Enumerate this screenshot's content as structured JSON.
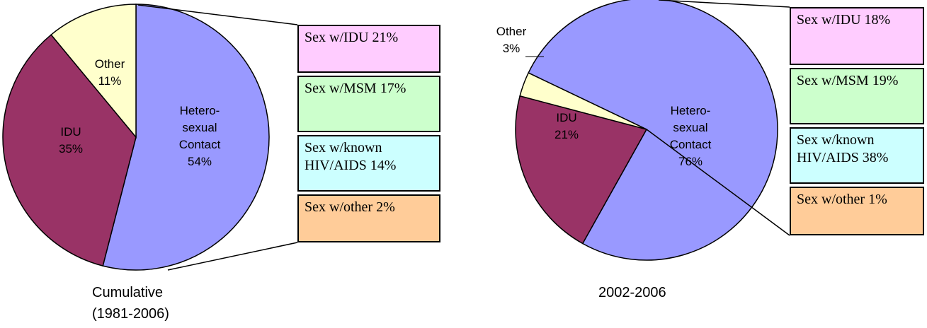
{
  "chart_data": [
    {
      "type": "pie",
      "title": [
        "Cumulative",
        "(1981-2006)"
      ],
      "categories": [
        [
          "Hetero-",
          "sexual",
          "Contact"
        ],
        [
          "IDU"
        ],
        [
          "Other"
        ]
      ],
      "values": [
        54,
        35,
        11
      ],
      "value_labels": [
        "54%",
        "35%",
        "11%"
      ],
      "colors": [
        "#9999ff",
        "#993366",
        "#ffffcc"
      ],
      "breakdown": {
        "categories": [
          "Sex w/IDU",
          "Sex w/MSM",
          "Sex w/known HIV/AIDS",
          "Sex w/other"
        ],
        "values": [
          21,
          17,
          14,
          2
        ],
        "value_labels": [
          "21%",
          "17%",
          "14%",
          "2%"
        ],
        "colors": [
          "#ffccff",
          "#ccffcc",
          "#ccffff",
          "#ffcc99"
        ]
      }
    },
    {
      "type": "pie",
      "title": [
        "2002-2006"
      ],
      "categories": [
        [
          "Hetero-",
          "sexual",
          "Contact"
        ],
        [
          "IDU"
        ],
        [
          "Other"
        ]
      ],
      "values": [
        76,
        21,
        3
      ],
      "value_labels": [
        "76%",
        "21%",
        "3%"
      ],
      "colors": [
        "#9999ff",
        "#993366",
        "#ffffcc"
      ],
      "breakdown": {
        "categories": [
          "Sex w/IDU",
          "Sex w/MSM",
          "Sex w/known HIV/AIDS",
          "Sex w/other"
        ],
        "values": [
          18,
          19,
          38,
          1
        ],
        "value_labels": [
          "18%",
          "19%",
          "38%",
          "1%"
        ],
        "colors": [
          "#ffccff",
          "#ccffcc",
          "#ccffff",
          "#ffcc99"
        ]
      }
    }
  ]
}
